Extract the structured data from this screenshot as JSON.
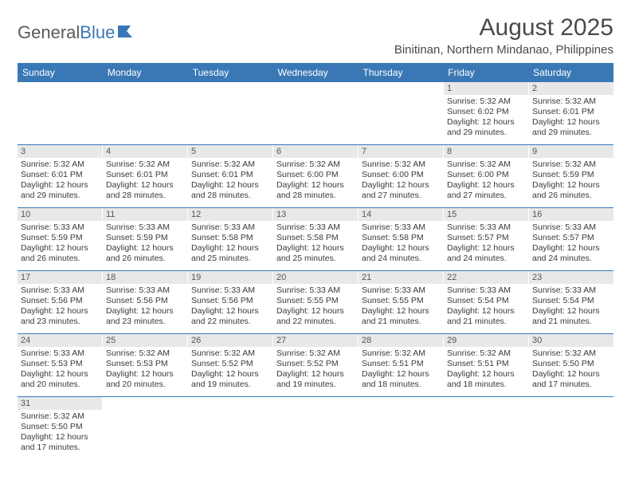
{
  "logo": {
    "text1": "General",
    "text2": "Blue"
  },
  "title": "August 2025",
  "location": "Binitinan, Northern Mindanao, Philippines",
  "colors": {
    "header_bg": "#3a78b5",
    "header_text": "#ffffff",
    "daynum_bg": "#e8e8e8",
    "row_border": "#3a78b5",
    "text": "#3a3a3a"
  },
  "dow": [
    "Sunday",
    "Monday",
    "Tuesday",
    "Wednesday",
    "Thursday",
    "Friday",
    "Saturday"
  ],
  "weeks": [
    [
      null,
      null,
      null,
      null,
      null,
      {
        "n": "1",
        "sr": "Sunrise: 5:32 AM",
        "ss": "Sunset: 6:02 PM",
        "dl1": "Daylight: 12 hours",
        "dl2": "and 29 minutes."
      },
      {
        "n": "2",
        "sr": "Sunrise: 5:32 AM",
        "ss": "Sunset: 6:01 PM",
        "dl1": "Daylight: 12 hours",
        "dl2": "and 29 minutes."
      }
    ],
    [
      {
        "n": "3",
        "sr": "Sunrise: 5:32 AM",
        "ss": "Sunset: 6:01 PM",
        "dl1": "Daylight: 12 hours",
        "dl2": "and 29 minutes."
      },
      {
        "n": "4",
        "sr": "Sunrise: 5:32 AM",
        "ss": "Sunset: 6:01 PM",
        "dl1": "Daylight: 12 hours",
        "dl2": "and 28 minutes."
      },
      {
        "n": "5",
        "sr": "Sunrise: 5:32 AM",
        "ss": "Sunset: 6:01 PM",
        "dl1": "Daylight: 12 hours",
        "dl2": "and 28 minutes."
      },
      {
        "n": "6",
        "sr": "Sunrise: 5:32 AM",
        "ss": "Sunset: 6:00 PM",
        "dl1": "Daylight: 12 hours",
        "dl2": "and 28 minutes."
      },
      {
        "n": "7",
        "sr": "Sunrise: 5:32 AM",
        "ss": "Sunset: 6:00 PM",
        "dl1": "Daylight: 12 hours",
        "dl2": "and 27 minutes."
      },
      {
        "n": "8",
        "sr": "Sunrise: 5:32 AM",
        "ss": "Sunset: 6:00 PM",
        "dl1": "Daylight: 12 hours",
        "dl2": "and 27 minutes."
      },
      {
        "n": "9",
        "sr": "Sunrise: 5:32 AM",
        "ss": "Sunset: 5:59 PM",
        "dl1": "Daylight: 12 hours",
        "dl2": "and 26 minutes."
      }
    ],
    [
      {
        "n": "10",
        "sr": "Sunrise: 5:33 AM",
        "ss": "Sunset: 5:59 PM",
        "dl1": "Daylight: 12 hours",
        "dl2": "and 26 minutes."
      },
      {
        "n": "11",
        "sr": "Sunrise: 5:33 AM",
        "ss": "Sunset: 5:59 PM",
        "dl1": "Daylight: 12 hours",
        "dl2": "and 26 minutes."
      },
      {
        "n": "12",
        "sr": "Sunrise: 5:33 AM",
        "ss": "Sunset: 5:58 PM",
        "dl1": "Daylight: 12 hours",
        "dl2": "and 25 minutes."
      },
      {
        "n": "13",
        "sr": "Sunrise: 5:33 AM",
        "ss": "Sunset: 5:58 PM",
        "dl1": "Daylight: 12 hours",
        "dl2": "and 25 minutes."
      },
      {
        "n": "14",
        "sr": "Sunrise: 5:33 AM",
        "ss": "Sunset: 5:58 PM",
        "dl1": "Daylight: 12 hours",
        "dl2": "and 24 minutes."
      },
      {
        "n": "15",
        "sr": "Sunrise: 5:33 AM",
        "ss": "Sunset: 5:57 PM",
        "dl1": "Daylight: 12 hours",
        "dl2": "and 24 minutes."
      },
      {
        "n": "16",
        "sr": "Sunrise: 5:33 AM",
        "ss": "Sunset: 5:57 PM",
        "dl1": "Daylight: 12 hours",
        "dl2": "and 24 minutes."
      }
    ],
    [
      {
        "n": "17",
        "sr": "Sunrise: 5:33 AM",
        "ss": "Sunset: 5:56 PM",
        "dl1": "Daylight: 12 hours",
        "dl2": "and 23 minutes."
      },
      {
        "n": "18",
        "sr": "Sunrise: 5:33 AM",
        "ss": "Sunset: 5:56 PM",
        "dl1": "Daylight: 12 hours",
        "dl2": "and 23 minutes."
      },
      {
        "n": "19",
        "sr": "Sunrise: 5:33 AM",
        "ss": "Sunset: 5:56 PM",
        "dl1": "Daylight: 12 hours",
        "dl2": "and 22 minutes."
      },
      {
        "n": "20",
        "sr": "Sunrise: 5:33 AM",
        "ss": "Sunset: 5:55 PM",
        "dl1": "Daylight: 12 hours",
        "dl2": "and 22 minutes."
      },
      {
        "n": "21",
        "sr": "Sunrise: 5:33 AM",
        "ss": "Sunset: 5:55 PM",
        "dl1": "Daylight: 12 hours",
        "dl2": "and 21 minutes."
      },
      {
        "n": "22",
        "sr": "Sunrise: 5:33 AM",
        "ss": "Sunset: 5:54 PM",
        "dl1": "Daylight: 12 hours",
        "dl2": "and 21 minutes."
      },
      {
        "n": "23",
        "sr": "Sunrise: 5:33 AM",
        "ss": "Sunset: 5:54 PM",
        "dl1": "Daylight: 12 hours",
        "dl2": "and 21 minutes."
      }
    ],
    [
      {
        "n": "24",
        "sr": "Sunrise: 5:33 AM",
        "ss": "Sunset: 5:53 PM",
        "dl1": "Daylight: 12 hours",
        "dl2": "and 20 minutes."
      },
      {
        "n": "25",
        "sr": "Sunrise: 5:32 AM",
        "ss": "Sunset: 5:53 PM",
        "dl1": "Daylight: 12 hours",
        "dl2": "and 20 minutes."
      },
      {
        "n": "26",
        "sr": "Sunrise: 5:32 AM",
        "ss": "Sunset: 5:52 PM",
        "dl1": "Daylight: 12 hours",
        "dl2": "and 19 minutes."
      },
      {
        "n": "27",
        "sr": "Sunrise: 5:32 AM",
        "ss": "Sunset: 5:52 PM",
        "dl1": "Daylight: 12 hours",
        "dl2": "and 19 minutes."
      },
      {
        "n": "28",
        "sr": "Sunrise: 5:32 AM",
        "ss": "Sunset: 5:51 PM",
        "dl1": "Daylight: 12 hours",
        "dl2": "and 18 minutes."
      },
      {
        "n": "29",
        "sr": "Sunrise: 5:32 AM",
        "ss": "Sunset: 5:51 PM",
        "dl1": "Daylight: 12 hours",
        "dl2": "and 18 minutes."
      },
      {
        "n": "30",
        "sr": "Sunrise: 5:32 AM",
        "ss": "Sunset: 5:50 PM",
        "dl1": "Daylight: 12 hours",
        "dl2": "and 17 minutes."
      }
    ],
    [
      {
        "n": "31",
        "sr": "Sunrise: 5:32 AM",
        "ss": "Sunset: 5:50 PM",
        "dl1": "Daylight: 12 hours",
        "dl2": "and 17 minutes."
      },
      null,
      null,
      null,
      null,
      null,
      null
    ]
  ]
}
